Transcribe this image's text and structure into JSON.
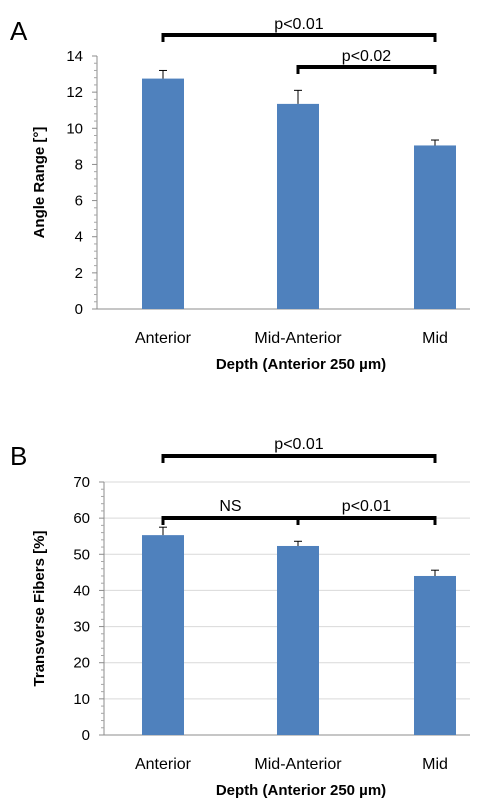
{
  "chart_data": [
    {
      "type": "bar",
      "panel": "A",
      "categories": [
        "Anterior",
        "Mid-Anterior",
        "Mid"
      ],
      "values": [
        12.75,
        11.35,
        9.05
      ],
      "errors": [
        0.45,
        0.75,
        0.3
      ],
      "xlabel": "Depth (Anterior 250 µm)",
      "ylabel": "Angle Range [°]",
      "ylim": [
        0,
        14
      ],
      "yticks": [
        0,
        2,
        4,
        6,
        8,
        10,
        12,
        14
      ],
      "bar_color": "#4f81bd",
      "grid": false,
      "significance": [
        {
          "from": 0,
          "to": 2,
          "label": "p<0.01",
          "level": 0
        },
        {
          "from": 1,
          "to": 2,
          "label": "p<0.02",
          "level": 1
        }
      ]
    },
    {
      "type": "bar",
      "panel": "B",
      "categories": [
        "Anterior",
        "Mid-Anterior",
        "Mid"
      ],
      "values": [
        55.3,
        52.3,
        44.0
      ],
      "errors": [
        2.2,
        1.3,
        1.6
      ],
      "xlabel": "Depth (Anterior 250 µm)",
      "ylabel": "Transverse Fibers [%]",
      "ylim": [
        0,
        70
      ],
      "yticks": [
        0,
        10,
        20,
        30,
        40,
        50,
        60,
        70
      ],
      "bar_color": "#4f81bd",
      "grid": true,
      "significance": [
        {
          "from": 0,
          "to": 2,
          "label": "p<0.01",
          "level": 0
        },
        {
          "from": 0,
          "to": 1,
          "label": "NS",
          "level": 1
        },
        {
          "from": 1,
          "to": 2,
          "label": "p<0.01",
          "level": 1
        }
      ]
    }
  ]
}
